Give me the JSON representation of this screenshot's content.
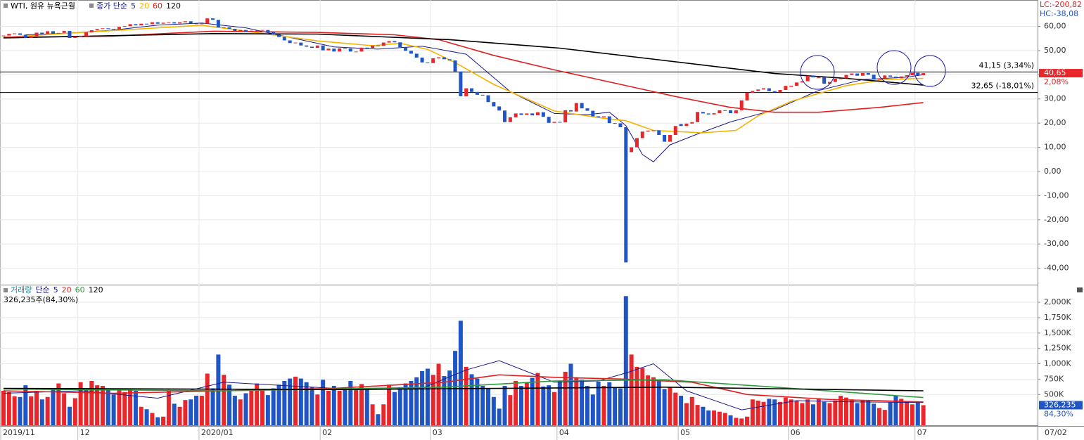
{
  "chart_data": [
    {
      "type": "candlestick",
      "title": "WTI, 원유 뉴욕근월",
      "legend_label": "종가 단순",
      "categories": [
        "2019/11",
        null,
        null,
        null,
        null,
        null,
        null,
        null,
        null,
        null,
        null,
        null,
        null,
        null,
        "12",
        null,
        null,
        null,
        null,
        null,
        null,
        null,
        null,
        null,
        null,
        null,
        null,
        null,
        null,
        null,
        null,
        null,
        null,
        null,
        null,
        null,
        "2020/01",
        null,
        null,
        null,
        null,
        null,
        null,
        null,
        null,
        null,
        null,
        null,
        null,
        null,
        null,
        null,
        null,
        null,
        null,
        null,
        null,
        null,
        "02",
        null,
        null,
        null,
        null,
        null,
        null,
        null,
        null,
        null,
        null,
        null,
        null,
        null,
        null,
        null,
        null,
        null,
        null,
        null,
        "03",
        null,
        null,
        null,
        null,
        null,
        null,
        null,
        null,
        null,
        null,
        null,
        null,
        null,
        null,
        null,
        null,
        null,
        null,
        null,
        null,
        null,
        null,
        "04",
        null,
        null,
        null,
        null,
        null,
        null,
        null,
        null,
        null,
        null,
        null,
        null,
        null,
        null,
        null,
        null,
        null,
        null,
        null,
        null,
        null,
        "05",
        null,
        null,
        null,
        null,
        null,
        null,
        null,
        null,
        null,
        null,
        null,
        null,
        null,
        null,
        null,
        null,
        null,
        null,
        null,
        "06",
        null,
        null,
        null,
        null,
        null,
        null,
        null,
        null,
        null,
        null,
        null,
        null,
        null,
        null,
        null,
        null,
        null,
        null,
        null,
        null,
        null,
        null,
        "07",
        null
      ],
      "open": [
        56.0,
        56.2,
        56.9,
        57.1,
        56.5,
        55.2,
        56.0,
        57.4,
        56.8,
        58.0,
        57.1,
        57.3,
        58.1,
        55.2,
        55.8,
        56.0,
        57.5,
        58.4,
        58.9,
        59.2,
        59.0,
        58.8,
        59.8,
        60.1,
        60.9,
        60.4,
        61.1,
        60.9,
        61.7,
        61.1,
        61.5,
        61.7,
        61.2,
        61.7,
        62.1,
        61.2,
        61.1,
        61.2,
        63.3,
        62.7,
        59.6,
        59.6,
        59.0,
        58.1,
        58.5,
        57.8,
        58.2,
        58.3,
        58.5,
        57.7,
        56.7,
        55.6,
        54.2,
        53.1,
        53.3,
        52.1,
        51.6,
        51.1,
        52.1,
        50.1,
        50.8,
        49.6,
        50.9,
        50.8,
        49.6,
        49.6,
        51.2,
        51.1,
        52.1,
        52.0,
        53.3,
        53.9,
        53.4,
        51.4,
        49.9,
        48.7,
        47.1,
        45.1,
        44.8,
        46.8,
        47.2,
        46.4,
        45.9,
        41.3,
        31.1,
        34.4,
        32.9,
        31.7,
        31.5,
        28.7,
        26.9,
        25.2,
        20.4,
        22.4,
        24.0,
        23.4,
        24.0,
        23.2,
        24.5,
        22.6,
        20.1,
        20.5,
        20.3,
        25.3,
        24.8,
        28.3,
        26.1,
        25.1,
        22.8,
        22.4,
        22.8,
        20.0,
        19.9,
        18.3,
        8.0,
        10.0,
        13.8,
        16.5,
        16.9,
        17.0,
        15.1,
        12.3,
        15.1,
        19.6,
        18.8,
        19.8,
        20.4,
        24.6,
        24.0,
        23.6,
        24.1,
        25.3,
        25.3,
        24.1,
        25.3,
        29.4,
        32.5,
        33.3,
        33.9,
        34.4,
        33.2,
        32.8,
        33.7,
        35.0,
        35.4,
        36.8,
        37.3,
        39.6,
        38.9,
        38.9,
        36.3,
        37.0,
        38.4,
        38.5,
        39.9,
        40.5,
        39.6,
        40.7,
        40.0,
        38.0,
        38.5,
        39.7,
        39.2,
        38.6,
        39.3,
        39.8,
        40.8,
        39.8
      ],
      "close": [
        56.2,
        56.9,
        57.1,
        56.5,
        55.2,
        56.0,
        57.4,
        56.8,
        58.0,
        57.1,
        57.3,
        58.1,
        55.2,
        55.8,
        56.0,
        57.5,
        58.4,
        58.9,
        59.2,
        59.0,
        58.8,
        59.8,
        60.1,
        60.9,
        60.4,
        61.1,
        60.9,
        61.7,
        61.1,
        61.5,
        61.7,
        61.2,
        61.7,
        62.1,
        61.2,
        61.1,
        61.2,
        63.3,
        62.7,
        59.6,
        59.6,
        59.0,
        58.1,
        58.5,
        57.8,
        58.2,
        58.3,
        58.5,
        57.7,
        56.7,
        55.6,
        54.2,
        53.1,
        53.3,
        52.1,
        51.6,
        51.1,
        52.1,
        50.1,
        50.8,
        49.6,
        50.9,
        50.8,
        49.6,
        49.6,
        51.2,
        51.1,
        52.1,
        52.0,
        53.3,
        53.9,
        53.4,
        51.4,
        49.9,
        48.7,
        47.1,
        45.1,
        44.8,
        46.8,
        47.2,
        46.4,
        45.9,
        41.3,
        31.1,
        34.4,
        32.9,
        31.7,
        31.5,
        28.7,
        26.9,
        25.2,
        20.4,
        22.4,
        24.0,
        23.4,
        24.0,
        23.2,
        24.5,
        22.6,
        20.1,
        20.5,
        20.3,
        25.3,
        24.8,
        28.3,
        26.1,
        25.1,
        22.8,
        22.4,
        22.8,
        20.0,
        19.9,
        18.3,
        -37.6,
        10.0,
        13.8,
        16.5,
        16.9,
        17.0,
        15.1,
        12.3,
        15.1,
        18.8,
        18.8,
        19.8,
        20.4,
        24.6,
        24.0,
        23.6,
        24.1,
        25.3,
        25.3,
        24.1,
        25.3,
        29.4,
        32.5,
        33.3,
        33.9,
        34.4,
        33.2,
        32.8,
        33.7,
        35.4,
        35.4,
        36.8,
        37.3,
        39.6,
        38.9,
        38.9,
        36.3,
        37.0,
        38.4,
        38.5,
        39.9,
        40.5,
        39.6,
        40.7,
        40.0,
        38.0,
        38.5,
        39.7,
        39.2,
        38.6,
        39.3,
        39.8,
        40.8,
        39.8,
        40.65
      ],
      "up_color": "#e8262c",
      "down_color": "#1f55c4",
      "series": [
        {
          "name": "5",
          "color": "#1a1a8c",
          "x": [
            4,
            12,
            20,
            28,
            36,
            44,
            52,
            60,
            68,
            76,
            84,
            92,
            100,
            106,
            110,
            113,
            116,
            118,
            121,
            126,
            132,
            140,
            148,
            156,
            164,
            167
          ],
          "values": [
            56.5,
            57.2,
            58.5,
            60.5,
            61.4,
            59.4,
            55.4,
            51.5,
            50.6,
            51.8,
            48.5,
            33.0,
            24.0,
            23.5,
            24.5,
            19.0,
            7.0,
            4.0,
            11.0,
            15.5,
            20.5,
            25.5,
            33.5,
            38.0,
            39.0,
            40.0
          ]
        },
        {
          "name": "20",
          "color": "#f5b400",
          "x": [
            0,
            36,
            57,
            67,
            72,
            77,
            82,
            89,
            100,
            109,
            113,
            118,
            127,
            133,
            137,
            143,
            153,
            160,
            167
          ],
          "values": [
            55.5,
            60.5,
            54.0,
            52.0,
            53.0,
            50.5,
            45.0,
            36.0,
            25.0,
            22.0,
            21.0,
            17.0,
            16.0,
            17.0,
            23.0,
            29.0,
            35.5,
            38.0,
            38.5
          ]
        },
        {
          "name": "60",
          "color": "#e02020",
          "x": [
            0,
            20,
            38,
            57,
            71,
            79,
            89,
            100,
            114,
            122,
            132,
            140,
            148,
            159,
            167
          ],
          "values": [
            55.5,
            56.0,
            58.0,
            57.5,
            56.5,
            54.5,
            48.0,
            42.0,
            35.0,
            31.0,
            26.5,
            24.5,
            24.5,
            26.5,
            28.5
          ]
        },
        {
          "name": "120",
          "color": "#000000",
          "x": [
            0,
            38,
            57,
            81,
            101,
            114,
            127,
            140,
            153,
            167
          ],
          "values": [
            55.2,
            57.0,
            56.8,
            54.5,
            51.0,
            47.5,
            44.0,
            40.5,
            38.5,
            35.7
          ]
        }
      ],
      "ylim": [
        -46.8,
        70.9
      ],
      "yticks": [
        {
          "value": 60,
          "label": "60,00"
        },
        {
          "value": 50,
          "label": "50,00"
        },
        {
          "value": 40,
          "label": "40,00"
        },
        {
          "value": 30,
          "label": "30,00"
        },
        {
          "value": 20,
          "label": "20,00"
        },
        {
          "value": 10,
          "label": "10,00"
        },
        {
          "value": 0,
          "label": "0,00"
        },
        {
          "value": -10,
          "label": "-10,00"
        },
        {
          "value": -20,
          "label": "-20,00"
        },
        {
          "value": -30,
          "label": "-30,00"
        },
        {
          "value": -40,
          "label": "-40,00"
        }
      ],
      "reference_lines": [
        {
          "value": 41.15,
          "label": "41,15 (3,34%)"
        },
        {
          "value": 32.65,
          "label": "32,65 (-18,01%)"
        }
      ],
      "lc_label": "LC:-200,82",
      "hc_label": "HC:-38,08",
      "last_label": "40,65",
      "change_label": "2,08%",
      "cursor_label": "07/02",
      "grid": true
    },
    {
      "type": "bar",
      "title": "거래량",
      "legend_label": "단순",
      "info_label": "326,235주(84,30%)",
      "values": [
        560,
        540,
        470,
        460,
        650,
        470,
        560,
        420,
        460,
        600,
        680,
        520,
        300,
        440,
        700,
        600,
        720,
        650,
        640,
        570,
        500,
        600,
        540,
        600,
        560,
        300,
        260,
        200,
        130,
        140,
        560,
        350,
        300,
        410,
        420,
        480,
        480,
        840,
        600,
        1150,
        820,
        660,
        480,
        420,
        520,
        560,
        680,
        590,
        490,
        600,
        660,
        720,
        760,
        790,
        760,
        700,
        620,
        500,
        740,
        560,
        640,
        560,
        610,
        720,
        580,
        670,
        590,
        340,
        180,
        340,
        660,
        540,
        620,
        680,
        720,
        780,
        880,
        920,
        820,
        1000,
        800,
        890,
        1210,
        1700,
        950,
        830,
        760,
        640,
        600,
        460,
        270,
        640,
        490,
        720,
        640,
        690,
        770,
        850,
        630,
        650,
        540,
        720,
        870,
        1000,
        780,
        740,
        640,
        500,
        710,
        640,
        700,
        620,
        600,
        2100,
        1150,
        950,
        930,
        810,
        780,
        720,
        590,
        620,
        530,
        480,
        360,
        460,
        330,
        300,
        240,
        240,
        220,
        200,
        160,
        120,
        110,
        140,
        420,
        400,
        380,
        430,
        420,
        380,
        450,
        420,
        400,
        360,
        420,
        340,
        440,
        380,
        360,
        400,
        480,
        450,
        420,
        360,
        400,
        400,
        350,
        280,
        250,
        370,
        480,
        430,
        380,
        340,
        380,
        326.235
      ],
      "series": [
        {
          "name": "5",
          "color": "#1a1a8c",
          "x": [
            0,
            14,
            28,
            40,
            52,
            64,
            76,
            84,
            90,
            100,
            108,
            113,
            118,
            124,
            134,
            144,
            154,
            167
          ],
          "values": [
            520,
            560,
            440,
            700,
            640,
            580,
            600,
            900,
            1050,
            700,
            720,
            850,
            1000,
            560,
            250,
            400,
            380,
            370
          ]
        },
        {
          "name": "20",
          "color": "#e02020",
          "x": [
            0,
            20,
            40,
            60,
            80,
            90,
            100,
            113,
            125,
            135,
            150,
            167
          ],
          "values": [
            560,
            520,
            560,
            600,
            700,
            820,
            780,
            750,
            700,
            500,
            420,
            380
          ]
        },
        {
          "name": "60",
          "color": "#2e9a3e",
          "x": [
            0,
            40,
            80,
            100,
            120,
            140,
            167
          ],
          "values": [
            590,
            560,
            620,
            720,
            740,
            620,
            450
          ]
        },
        {
          "name": "120",
          "color": "#000000",
          "x": [
            0,
            60,
            120,
            167
          ],
          "values": [
            600,
            580,
            620,
            560
          ]
        }
      ],
      "ylim": [
        0,
        2275
      ],
      "yticks": [
        {
          "value": 500,
          "label": "500K"
        },
        {
          "value": 750,
          "label": "750K"
        },
        {
          "value": 1000,
          "label": "1,000K"
        },
        {
          "value": 1250,
          "label": "1,250K"
        },
        {
          "value": 1500,
          "label": "1,500K"
        },
        {
          "value": 1750,
          "label": "1,750K"
        },
        {
          "value": 2000,
          "label": "2,000K"
        }
      ],
      "last_label": "326,235",
      "ratio_label": "84,30%",
      "grid": true
    }
  ]
}
